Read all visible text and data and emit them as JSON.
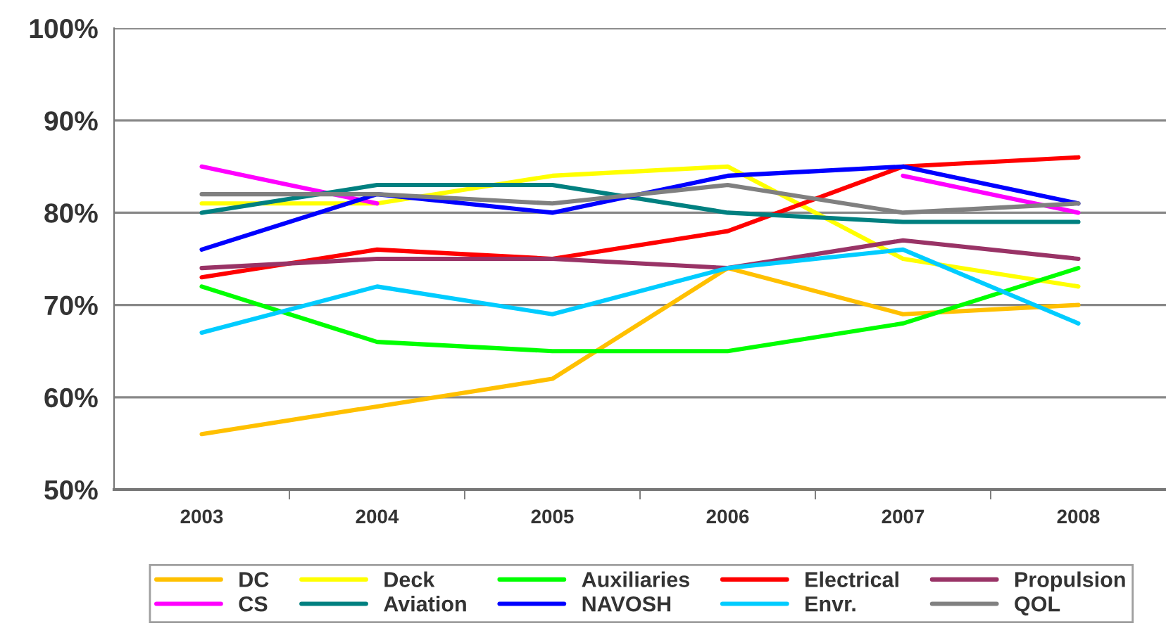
{
  "chart_data": {
    "type": "line",
    "categories": [
      "2003",
      "2004",
      "2005",
      "2006",
      "2007",
      "2008"
    ],
    "series": [
      {
        "name": "DC",
        "color": "#ffc000",
        "values": [
          56,
          59,
          62,
          74,
          69,
          70
        ]
      },
      {
        "name": "Deck",
        "color": "#ffff00",
        "values": [
          81,
          81,
          84,
          85,
          75,
          72
        ]
      },
      {
        "name": "Auxiliaries",
        "color": "#00ff00",
        "values": [
          72,
          66,
          65,
          65,
          68,
          74
        ]
      },
      {
        "name": "Electrical",
        "color": "#ff0000",
        "values": [
          73,
          76,
          75,
          78,
          85,
          86
        ]
      },
      {
        "name": "Propulsion",
        "color": "#993366",
        "values": [
          74,
          75,
          75,
          74,
          77,
          75
        ]
      },
      {
        "name": "CS",
        "color": "#ff00ff",
        "values": [
          85,
          81,
          null,
          null,
          84,
          80
        ]
      },
      {
        "name": "Aviation",
        "color": "#008080",
        "values": [
          80,
          83,
          83,
          80,
          79,
          79
        ]
      },
      {
        "name": "NAVOSH",
        "color": "#0000ff",
        "values": [
          76,
          82,
          80,
          84,
          85,
          81
        ]
      },
      {
        "name": "Envr.",
        "color": "#00ccff",
        "values": [
          67,
          72,
          69,
          74,
          76,
          68
        ]
      },
      {
        "name": "QOL",
        "color": "#808080",
        "values": [
          82,
          82,
          81,
          83,
          80,
          81
        ]
      }
    ],
    "ylim": [
      50,
      100
    ],
    "yticks": [
      {
        "value": 50,
        "label": "50%"
      },
      {
        "value": 60,
        "label": "60%"
      },
      {
        "value": 70,
        "label": "70%"
      },
      {
        "value": 80,
        "label": "80%"
      },
      {
        "value": 90,
        "label": "90%"
      },
      {
        "value": 100,
        "label": "100%"
      }
    ],
    "grid": "y",
    "legend": "bottom",
    "marker": "none",
    "line_style": "solid"
  }
}
